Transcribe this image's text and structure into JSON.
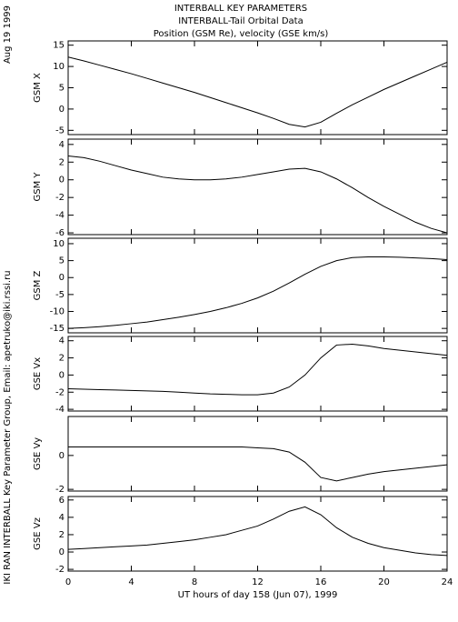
{
  "title_lines": [
    "INTERBALL KEY PARAMETERS",
    "INTERBALL-Tail Orbital Data",
    "Position (GSM Re), velocity (GSE km/s)"
  ],
  "date_label": "Aug 19 1999",
  "credit": "IKI RAN INTERBALL Key Parameter Group, Email: apetruko@iki.rssi.ru",
  "chart_data": [
    {
      "type": "line",
      "ylabel": "GSM X",
      "color": "#000000",
      "x": [
        0,
        1,
        2,
        3,
        4,
        5,
        6,
        7,
        8,
        9,
        10,
        11,
        12,
        13,
        14,
        15,
        16,
        17,
        18,
        19,
        20,
        21,
        22,
        23,
        24
      ],
      "values": [
        12.2,
        11.3,
        10.3,
        9.3,
        8.3,
        7.2,
        6.1,
        5.0,
        3.9,
        2.7,
        1.5,
        0.3,
        -0.9,
        -2.2,
        -3.6,
        -4.2,
        -3.1,
        -1.0,
        1.0,
        2.8,
        4.6,
        6.2,
        7.8,
        9.4,
        11.0
      ],
      "xlim": [
        0,
        24
      ],
      "ylim": [
        -6,
        16
      ],
      "yticks": [
        -5,
        0,
        5,
        10,
        15
      ]
    },
    {
      "type": "line",
      "ylabel": "GSM Y",
      "color": "#000000",
      "x": [
        0,
        1,
        2,
        3,
        4,
        5,
        6,
        7,
        8,
        9,
        10,
        11,
        12,
        13,
        14,
        15,
        16,
        17,
        18,
        19,
        20,
        21,
        22,
        23,
        24
      ],
      "values": [
        2.7,
        2.5,
        2.1,
        1.6,
        1.1,
        0.7,
        0.3,
        0.1,
        0,
        0,
        0.1,
        0.3,
        0.6,
        0.9,
        1.2,
        1.3,
        0.9,
        0.1,
        -0.9,
        -2.0,
        -3.0,
        -3.9,
        -4.8,
        -5.5,
        -6.0
      ],
      "xlim": [
        0,
        24
      ],
      "ylim": [
        -6.2,
        4.6
      ],
      "yticks": [
        -6,
        -4,
        -2,
        0,
        2,
        4
      ]
    },
    {
      "type": "line",
      "ylabel": "GSM Z",
      "color": "#000000",
      "x": [
        0,
        1,
        2,
        3,
        4,
        5,
        6,
        7,
        8,
        9,
        10,
        11,
        12,
        13,
        14,
        15,
        16,
        17,
        18,
        19,
        20,
        21,
        22,
        23,
        24
      ],
      "values": [
        -15.0,
        -14.8,
        -14.5,
        -14.1,
        -13.6,
        -13.1,
        -12.4,
        -11.7,
        -10.9,
        -10.0,
        -8.9,
        -7.6,
        -6.0,
        -4.0,
        -1.6,
        1.0,
        3.3,
        5.0,
        5.9,
        6.1,
        6.1,
        6.0,
        5.8,
        5.6,
        5.3
      ],
      "xlim": [
        0,
        24
      ],
      "ylim": [
        -16.3,
        11.6
      ],
      "yticks": [
        -15,
        -10,
        -5,
        0,
        5,
        10
      ]
    },
    {
      "type": "line",
      "ylabel": "GSE Vx",
      "color": "#000000",
      "x": [
        0,
        1,
        2,
        3,
        4,
        5,
        6,
        7,
        8,
        9,
        10,
        11,
        12,
        13,
        14,
        15,
        16,
        17,
        18,
        19,
        20,
        21,
        22,
        23,
        24
      ],
      "values": [
        -1.6,
        -1.65,
        -1.7,
        -1.75,
        -1.8,
        -1.85,
        -1.9,
        -2.0,
        -2.1,
        -2.2,
        -2.25,
        -2.3,
        -2.3,
        -2.1,
        -1.4,
        0,
        2.0,
        3.5,
        3.6,
        3.4,
        3.1,
        2.9,
        2.7,
        2.5,
        2.3
      ],
      "xlim": [
        0,
        24
      ],
      "ylim": [
        -4.2,
        4.5
      ],
      "yticks": [
        -4,
        -2,
        0,
        2,
        4
      ]
    },
    {
      "type": "line",
      "ylabel": "GSE Vy",
      "color": "#000000",
      "x": [
        0,
        1,
        2,
        3,
        4,
        5,
        6,
        7,
        8,
        9,
        10,
        11,
        12,
        13,
        14,
        15,
        16,
        17,
        18,
        19,
        20,
        21,
        22,
        23,
        24
      ],
      "values": [
        0.5,
        0.5,
        0.5,
        0.5,
        0.5,
        0.5,
        0.5,
        0.5,
        0.5,
        0.5,
        0.5,
        0.5,
        0.45,
        0.4,
        0.2,
        -0.4,
        -1.3,
        -1.5,
        -1.3,
        -1.1,
        -0.95,
        -0.85,
        -0.75,
        -0.65,
        -0.55
      ],
      "xlim": [
        0,
        24
      ],
      "ylim": [
        -2.1,
        2.3
      ],
      "yticks": [
        -2,
        0
      ]
    },
    {
      "type": "line",
      "ylabel": "GSE Vz",
      "color": "#000000",
      "x": [
        0,
        1,
        2,
        3,
        4,
        5,
        6,
        7,
        8,
        9,
        10,
        11,
        12,
        13,
        14,
        15,
        16,
        17,
        18,
        19,
        20,
        21,
        22,
        23,
        24
      ],
      "values": [
        0.3,
        0.4,
        0.5,
        0.6,
        0.7,
        0.8,
        1.0,
        1.2,
        1.4,
        1.7,
        2.0,
        2.5,
        3.0,
        3.8,
        4.7,
        5.2,
        4.3,
        2.8,
        1.7,
        1.0,
        0.5,
        0.2,
        -0.1,
        -0.3,
        -0.4
      ],
      "xlim": [
        0,
        24
      ],
      "ylim": [
        -2.2,
        6.4
      ],
      "yticks": [
        -2,
        0,
        2,
        4,
        6
      ],
      "xticks": [
        0,
        4,
        8,
        12,
        16,
        20,
        24
      ],
      "xlabel": "UT hours of day 158 (Jun 07), 1999"
    }
  ]
}
